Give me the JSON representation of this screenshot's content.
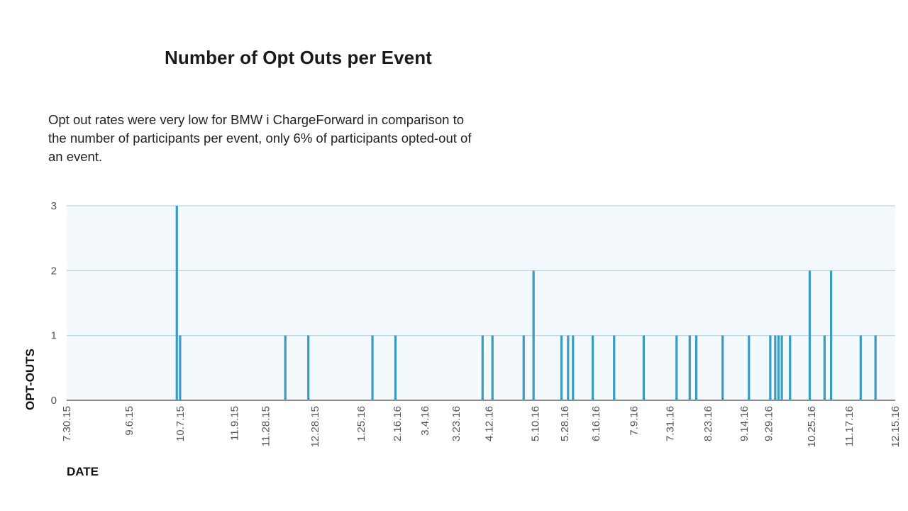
{
  "chart_data": {
    "type": "bar",
    "title": "Number of Opt Outs per Event",
    "subtitle": "Opt out rates were very low for BMW i ChargeForward in comparison to the number of participants per event, only 6% of participants opted-out of an event.",
    "xlabel": "DATE",
    "ylabel": "OPT-OUTS",
    "ylim": [
      0,
      3
    ],
    "yticks": [
      "0",
      "1",
      "2",
      "3"
    ],
    "x_range": [
      "2015-07-30",
      "2016-12-15"
    ],
    "x_ticks": [
      {
        "label": "7.30.15",
        "date": "2015-07-30"
      },
      {
        "label": "9.6.15",
        "date": "2015-09-06"
      },
      {
        "label": "10.7.15",
        "date": "2015-10-07"
      },
      {
        "label": "11.9.15",
        "date": "2015-11-09"
      },
      {
        "label": "11.28.15",
        "date": "2015-11-28"
      },
      {
        "label": "12.28.15",
        "date": "2015-12-28"
      },
      {
        "label": "1.25.16",
        "date": "2016-01-25"
      },
      {
        "label": "2.16.16",
        "date": "2016-02-16"
      },
      {
        "label": "3.4.16",
        "date": "2016-03-04"
      },
      {
        "label": "3.23.16",
        "date": "2016-03-23"
      },
      {
        "label": "4.12.16",
        "date": "2016-04-12"
      },
      {
        "label": "5.10.16",
        "date": "2016-05-10"
      },
      {
        "label": "5.28.16",
        "date": "2016-05-28"
      },
      {
        "label": "6.16.16",
        "date": "2016-06-16"
      },
      {
        "label": "7.9.16",
        "date": "2016-07-09"
      },
      {
        "label": "7.31.16",
        "date": "2016-07-31"
      },
      {
        "label": "8.23.16",
        "date": "2016-08-23"
      },
      {
        "label": "9.14.16",
        "date": "2016-09-14"
      },
      {
        "label": "9.29.16",
        "date": "2016-09-29"
      },
      {
        "label": "10.25.16",
        "date": "2016-10-25"
      },
      {
        "label": "11.17.16",
        "date": "2016-11-17"
      },
      {
        "label": "12.15.16",
        "date": "2016-12-15"
      }
    ],
    "points": [
      {
        "date": "2015-10-05",
        "value": 3
      },
      {
        "date": "2015-10-07",
        "value": 1
      },
      {
        "date": "2015-12-10",
        "value": 1
      },
      {
        "date": "2015-12-24",
        "value": 1
      },
      {
        "date": "2016-02-01",
        "value": 1
      },
      {
        "date": "2016-02-15",
        "value": 1
      },
      {
        "date": "2016-04-08",
        "value": 1
      },
      {
        "date": "2016-04-14",
        "value": 1
      },
      {
        "date": "2016-05-03",
        "value": 1
      },
      {
        "date": "2016-05-09",
        "value": 2
      },
      {
        "date": "2016-05-26",
        "value": 1
      },
      {
        "date": "2016-05-30",
        "value": 1
      },
      {
        "date": "2016-06-02",
        "value": 1
      },
      {
        "date": "2016-06-14",
        "value": 1
      },
      {
        "date": "2016-06-27",
        "value": 1
      },
      {
        "date": "2016-07-15",
        "value": 1
      },
      {
        "date": "2016-08-04",
        "value": 1
      },
      {
        "date": "2016-08-12",
        "value": 1
      },
      {
        "date": "2016-08-16",
        "value": 1
      },
      {
        "date": "2016-09-01",
        "value": 1
      },
      {
        "date": "2016-09-17",
        "value": 1
      },
      {
        "date": "2016-09-30",
        "value": 1
      },
      {
        "date": "2016-10-03",
        "value": 1
      },
      {
        "date": "2016-10-05",
        "value": 1
      },
      {
        "date": "2016-10-07",
        "value": 1
      },
      {
        "date": "2016-10-12",
        "value": 1
      },
      {
        "date": "2016-10-24",
        "value": 2
      },
      {
        "date": "2016-11-02",
        "value": 1
      },
      {
        "date": "2016-11-06",
        "value": 2
      },
      {
        "date": "2016-11-24",
        "value": 1
      },
      {
        "date": "2016-12-03",
        "value": 1
      }
    ],
    "grid": true,
    "colors": {
      "bar": "#3a9cc0",
      "plot_background": "#f3f9fc",
      "grid": "#bcd6e3",
      "baseline": "#8a8a8a"
    }
  }
}
